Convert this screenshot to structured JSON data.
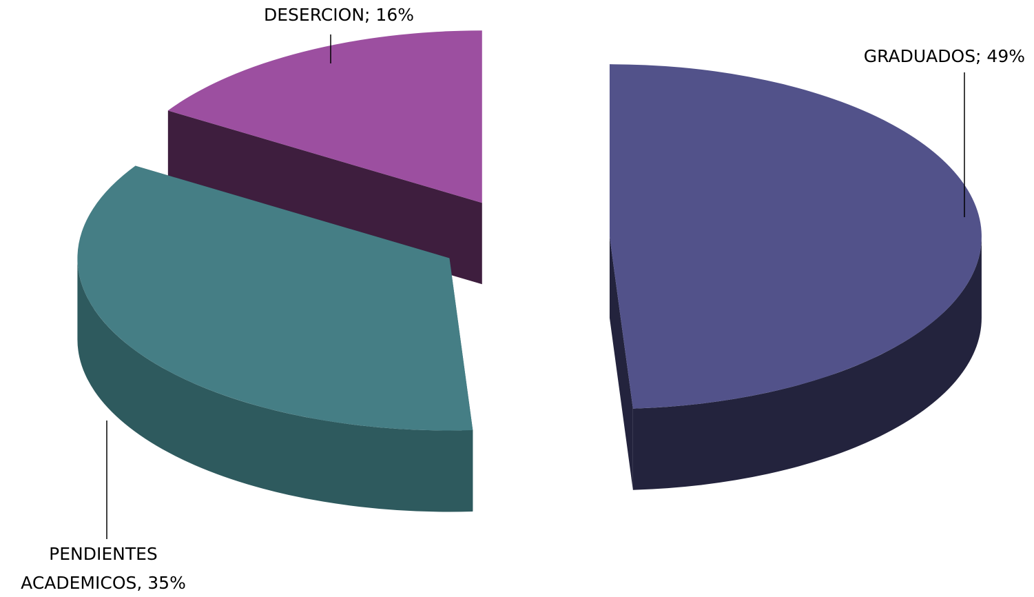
{
  "chart_data": {
    "type": "pie3d",
    "labels": [
      "GRADUADOS; 49%",
      "PENDIENTES ACADEMICOS, 35%",
      "DESERCION; 16%"
    ],
    "values": [
      49,
      35,
      16
    ],
    "colors": [
      "#52528a",
      "#457e85",
      "#9c4fa0"
    ],
    "side_colors": [
      "#23233d",
      "#2e5a5e",
      "#3e1e3e"
    ],
    "exploded": true
  }
}
